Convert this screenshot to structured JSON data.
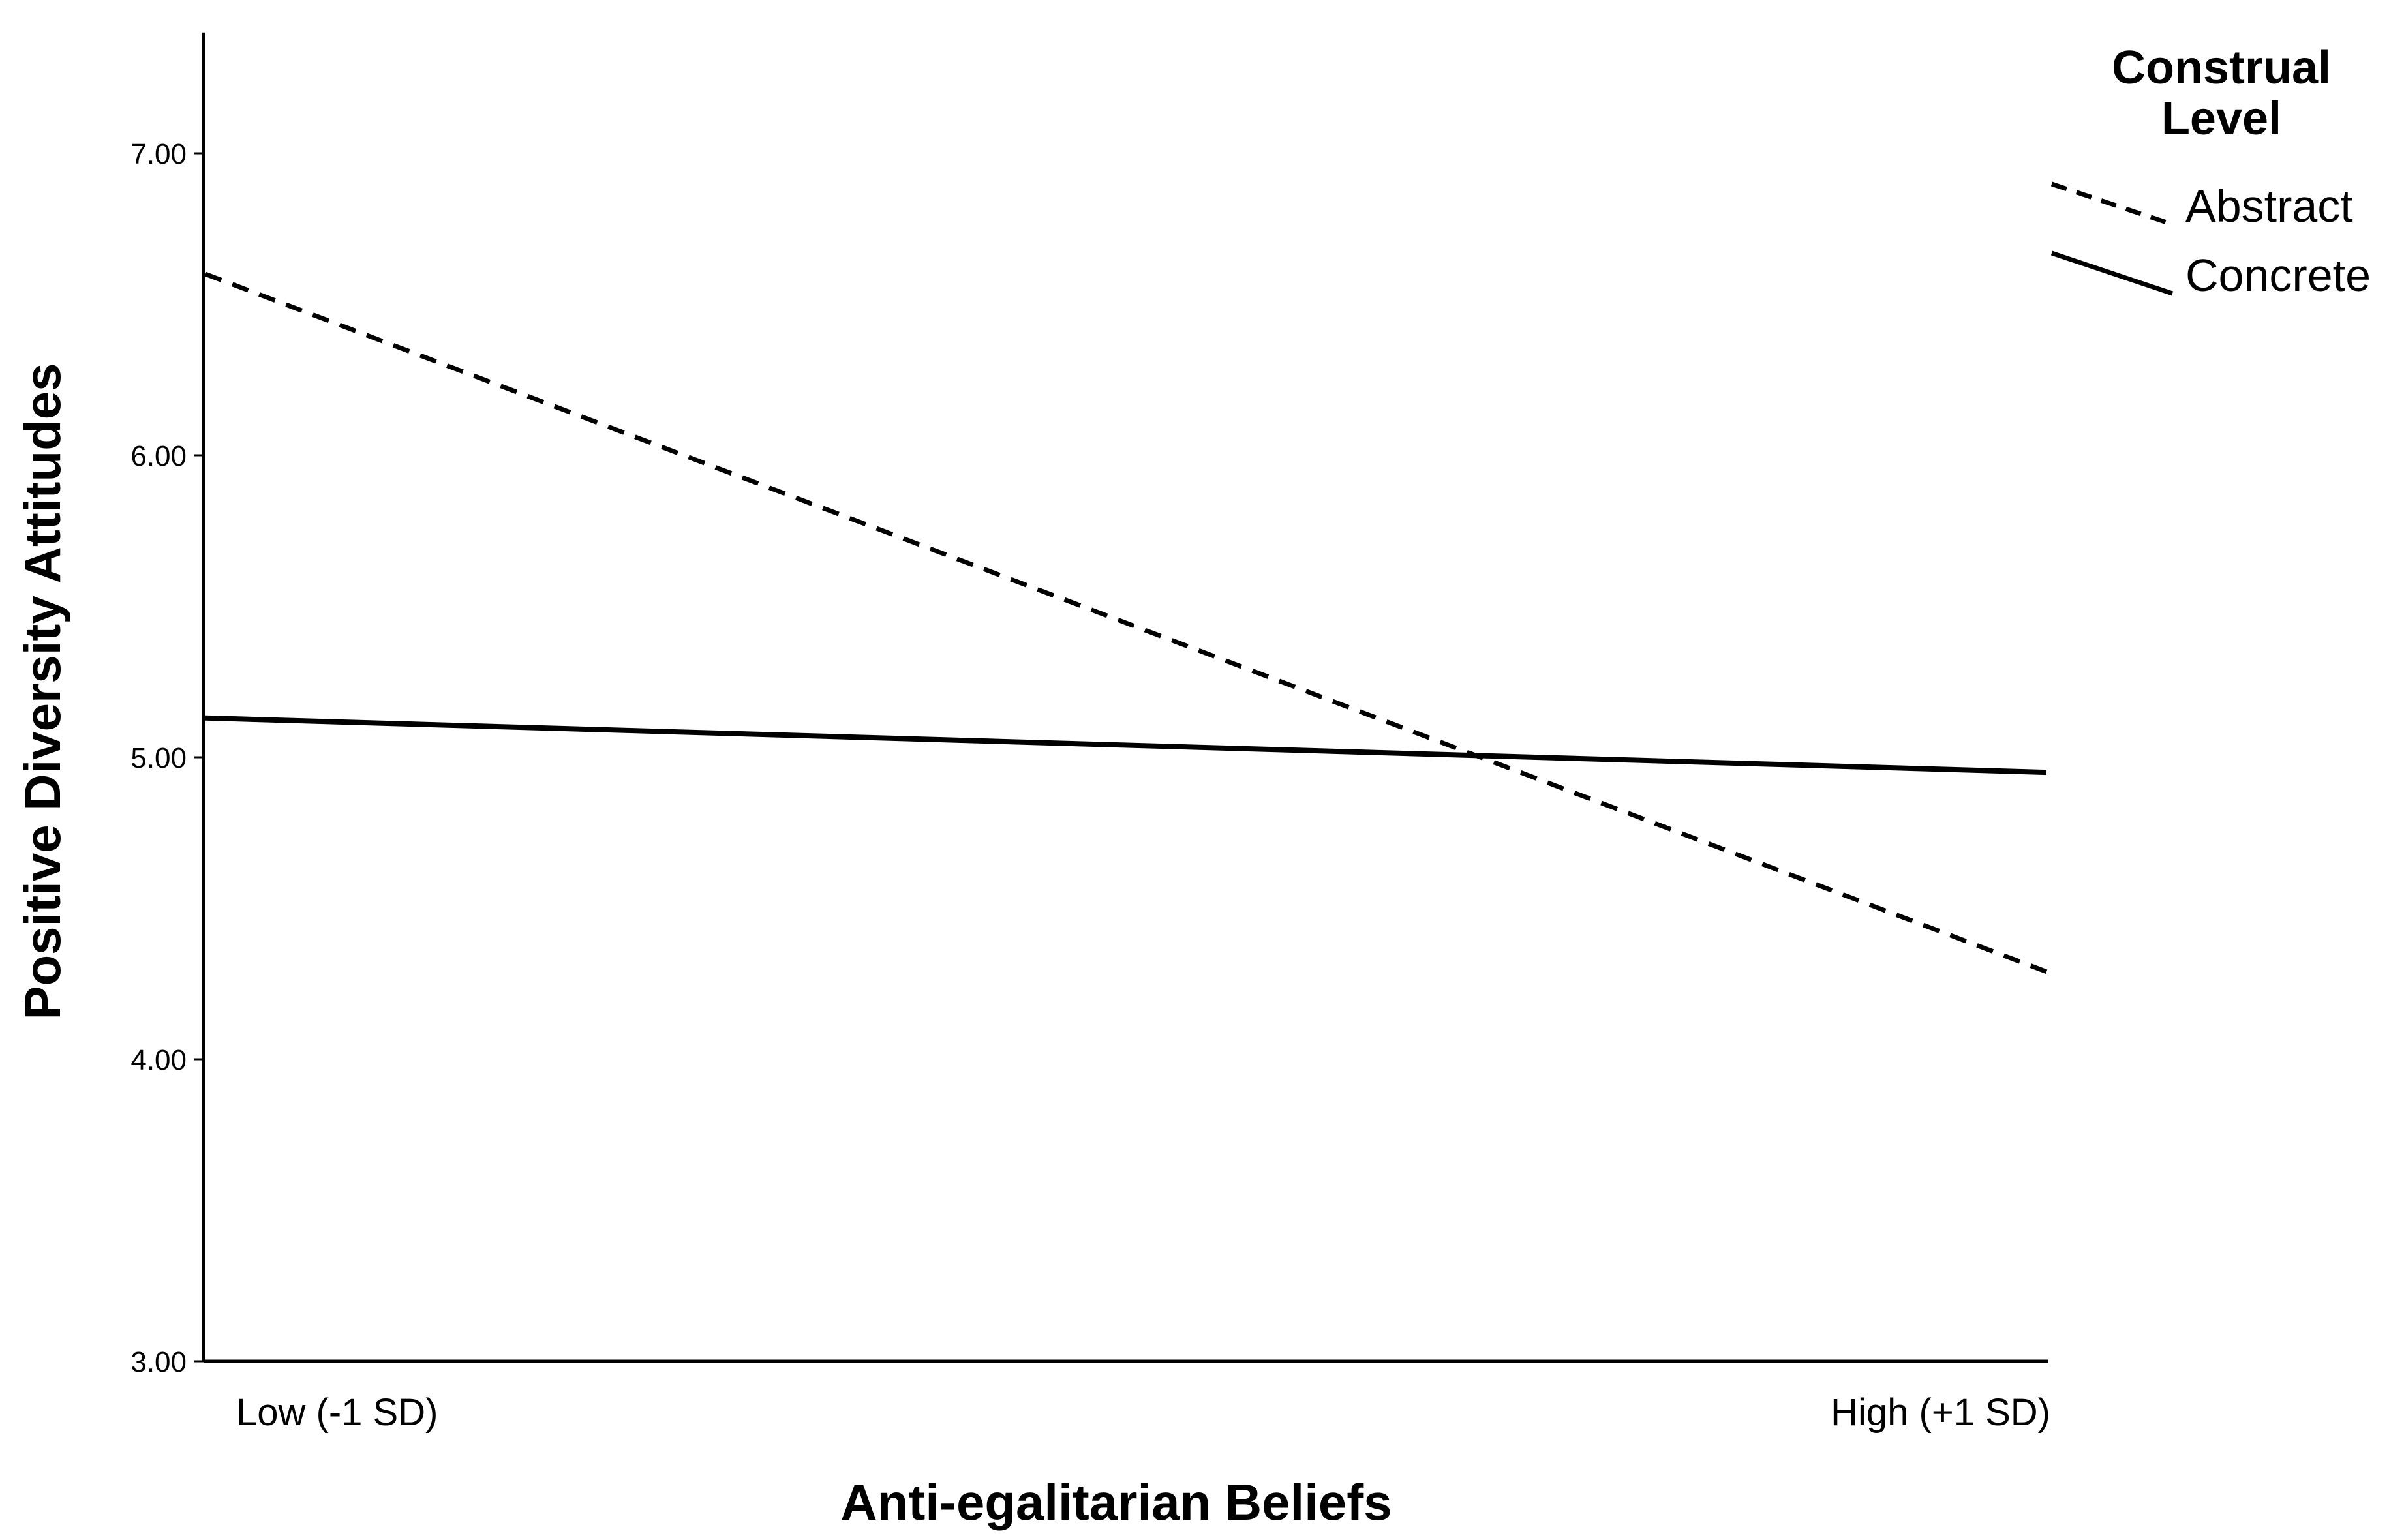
{
  "chart_data": {
    "type": "line",
    "title": "",
    "xlabel": "Anti-egalitarian Beliefs",
    "ylabel": "Positive Diversity Attitudes",
    "categories": [
      "Low (-1 SD)",
      "High (+1 SD)"
    ],
    "ylim": [
      3.0,
      7.4
    ],
    "yticks": [
      3.0,
      4.0,
      5.0,
      6.0,
      7.0
    ],
    "ytick_labels": [
      "3.00",
      "4.00",
      "5.00",
      "6.00",
      "7.00"
    ],
    "grid": false,
    "legend": {
      "title_lines": [
        "Construal",
        "Level"
      ],
      "placement": "top-right, outside plot"
    },
    "series": [
      {
        "name": "Abstract",
        "values": [
          6.6,
          4.29
        ],
        "line_style": "dashed",
        "color": "#000000"
      },
      {
        "name": "Concrete",
        "values": [
          5.13,
          4.95
        ],
        "line_style": "solid",
        "color": "#000000"
      }
    ]
  }
}
